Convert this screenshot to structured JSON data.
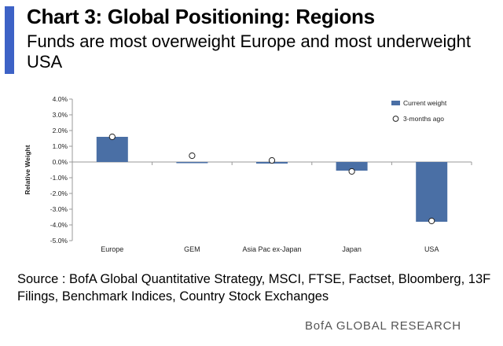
{
  "header": {
    "title": "Chart 3: Global Positioning: Regions",
    "subtitle": "Funds are most overweight Europe and most underweight USA",
    "accent_color": "#3d62c6"
  },
  "chart_data": {
    "type": "bar",
    "title": "",
    "xlabel": "",
    "ylabel": "Relative Weight",
    "categories": [
      "Europe",
      "GEM",
      "Asia Pac ex-Japan",
      "Japan",
      "USA"
    ],
    "series": [
      {
        "name": "Current weight",
        "kind": "bar",
        "color": "#4a6fa5",
        "values": [
          1.6,
          -0.05,
          -0.1,
          -0.55,
          -3.8
        ]
      },
      {
        "name": "3-months ago",
        "kind": "marker",
        "color": "#ffffff",
        "values": [
          1.6,
          0.4,
          0.1,
          -0.6,
          -3.75
        ]
      }
    ],
    "ylim": [
      -5.0,
      4.0
    ],
    "yticks": [
      4.0,
      3.0,
      2.0,
      1.0,
      0.0,
      -1.0,
      -2.0,
      -3.0,
      -4.0,
      -5.0
    ],
    "ytick_labels": [
      "4.0%",
      "3.0%",
      "2.0%",
      "1.0%",
      "0.0%",
      "-1.0%",
      "-2.0%",
      "-3.0%",
      "-4.0%",
      "-5.0%"
    ],
    "grid": false,
    "legend_position": "top-right"
  },
  "footer": {
    "source": "Source : BofA Global Quantitative Strategy, MSCI, FTSE, Factset, Bloomberg, 13F Filings, Benchmark Indices, Country Stock Exchanges",
    "brand": "BofA GLOBAL RESEARCH"
  }
}
